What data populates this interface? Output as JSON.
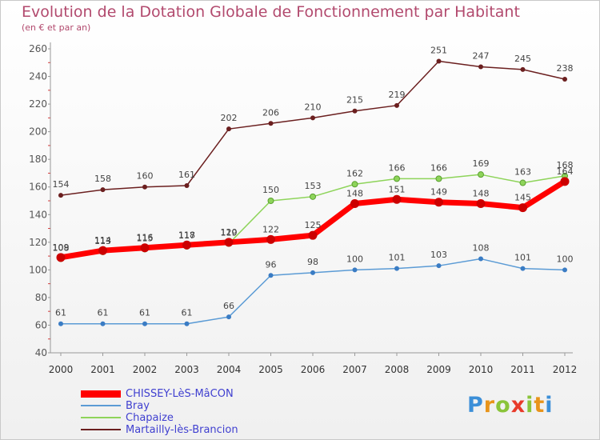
{
  "title": "Evolution de la Dotation Globale de Fonctionnement par Habitant",
  "subtitle": "(en € et par an)",
  "logo": "Proxiti",
  "chart_data": {
    "type": "line",
    "title": "Evolution de la Dotation Globale de Fonctionnement par Habitant",
    "subtitle": "(en € et par an)",
    "x": [
      "2000",
      "2001",
      "2002",
      "2003",
      "2004",
      "2005",
      "2006",
      "2007",
      "2008",
      "2009",
      "2010",
      "2011",
      "2012"
    ],
    "ylim": [
      40,
      260
    ],
    "yticks": [
      40,
      60,
      80,
      100,
      120,
      140,
      160,
      180,
      200,
      220,
      240,
      260
    ],
    "grid": false,
    "legend_position": "bottom-left",
    "series": [
      {
        "name": "CHISSEY-LèS-MâCON",
        "color": "#ff0000",
        "values": [
          109,
          114,
          116,
          118,
          120,
          122,
          125,
          148,
          151,
          149,
          148,
          145,
          164
        ]
      },
      {
        "name": "Bray",
        "color": "#5b9bd5",
        "values": [
          61,
          61,
          61,
          61,
          66,
          96,
          98,
          100,
          101,
          103,
          108,
          101,
          100
        ]
      },
      {
        "name": "Chapaize",
        "color": "#8ed45a",
        "values": [
          108,
          113,
          115,
          117,
          119,
          150,
          153,
          162,
          166,
          166,
          169,
          163,
          168
        ]
      },
      {
        "name": "Martailly-lès-Brancion",
        "color": "#6b1f1f",
        "values": [
          154,
          158,
          160,
          161,
          202,
          206,
          210,
          215,
          219,
          251,
          247,
          245,
          238
        ]
      }
    ]
  }
}
